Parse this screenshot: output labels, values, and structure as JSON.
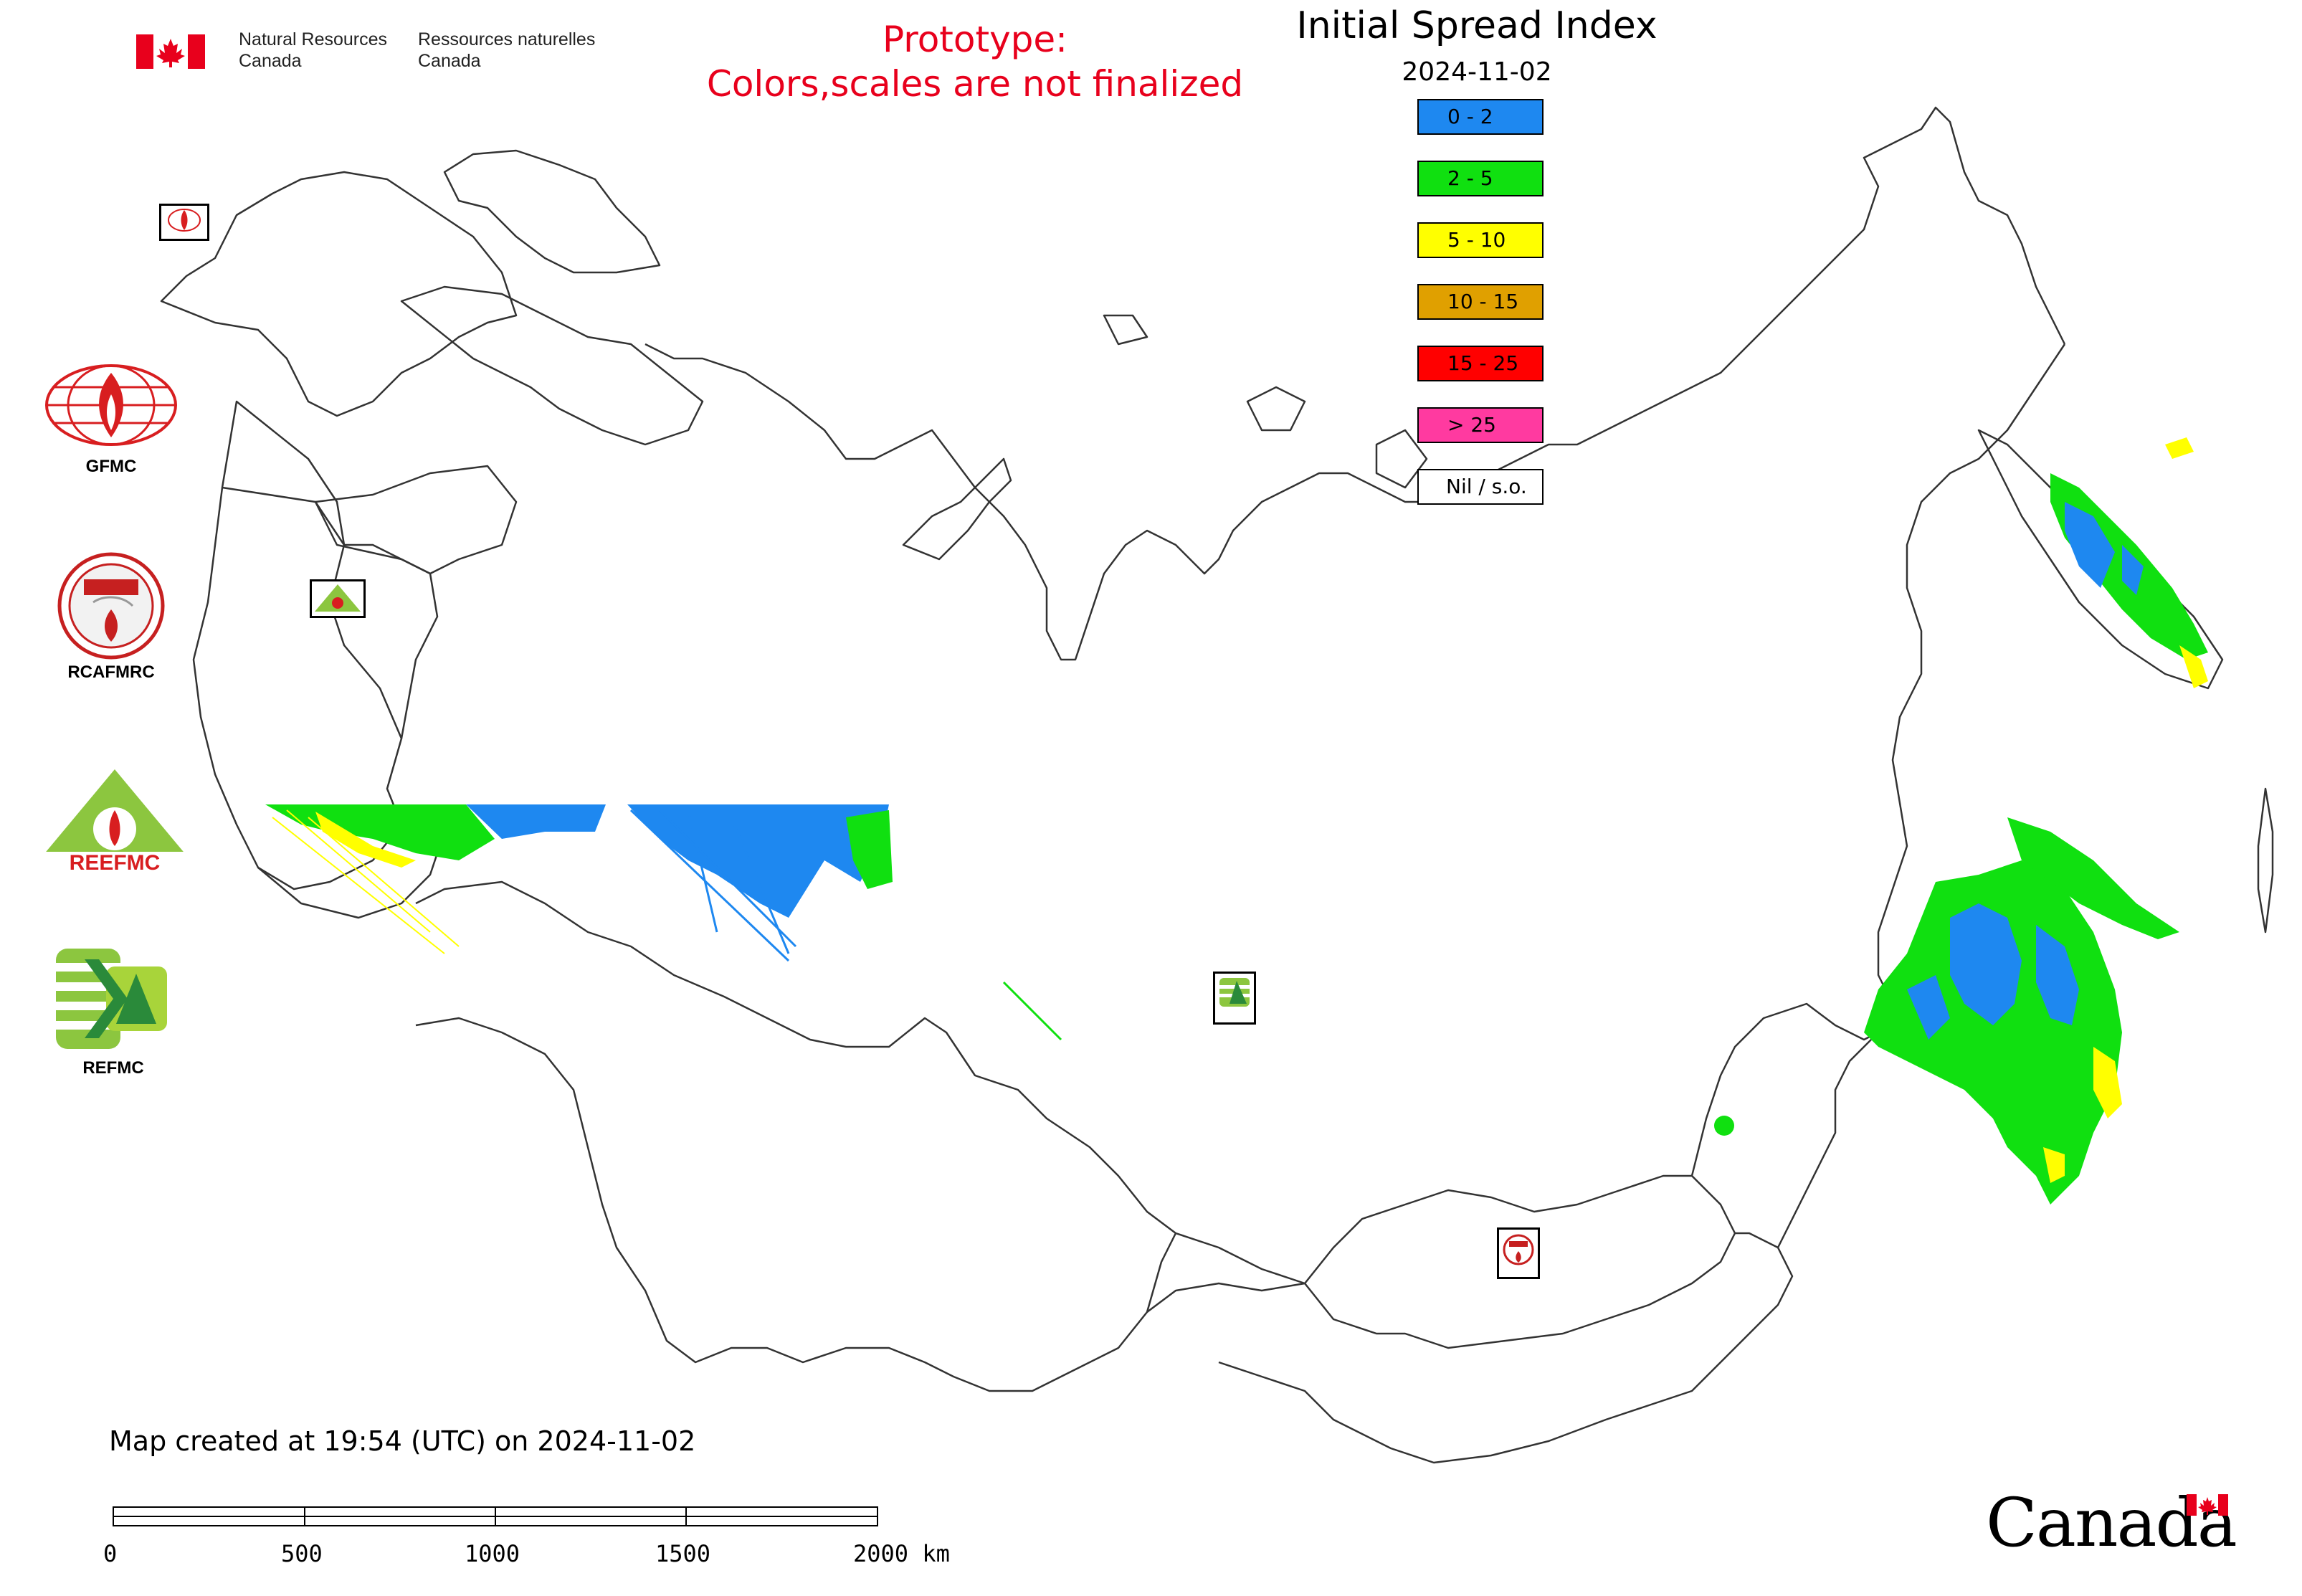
{
  "header": {
    "agency_en_line1": "Natural Resources",
    "agency_en_line2": "Canada",
    "agency_fr_line1": "Ressources naturelles",
    "agency_fr_line2": "Canada",
    "prototype_line1": "Prototype:",
    "prototype_line2": "Colors,scales are not finalized"
  },
  "map": {
    "title": "Initial Spread Index",
    "date": "2024-11-02"
  },
  "legend": {
    "items": [
      {
        "label": "0 - 2",
        "color": "#1e88f0"
      },
      {
        "label": "2 - 5",
        "color": "#10e010"
      },
      {
        "label": "5 - 10",
        "color": "#ffff00"
      },
      {
        "label": "10 - 15",
        "color": "#e0a000"
      },
      {
        "label": "15 - 25",
        "color": "#ff0000"
      },
      {
        "label": "> 25",
        "color": "#ff3aa0"
      },
      {
        "label": "Nil / s.o.",
        "color": "#ffffff"
      }
    ]
  },
  "logos": {
    "gfmc": "GFMC",
    "rcafmrc": "RCAFMRC",
    "reefmc": "REEFMC",
    "refmc": "REFMC"
  },
  "footer": {
    "created": "Map created at 19:54 (UTC) on 2024-11-02",
    "scale_labels": [
      "0",
      "500",
      "1000",
      "1500",
      "2000 km"
    ],
    "wordmark": "Canada"
  }
}
